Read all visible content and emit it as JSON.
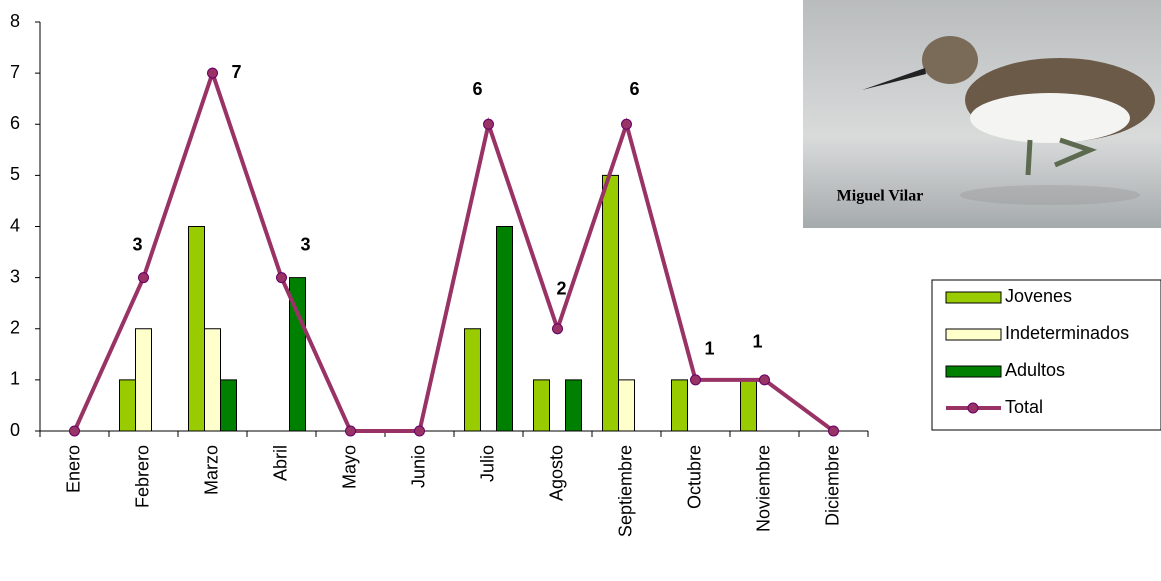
{
  "chart_data": {
    "type": "bar-line",
    "categories": [
      "Enero",
      "Febrero",
      "Marzo",
      "Abril",
      "Mayo",
      "Junio",
      "Julio",
      "Agosto",
      "Septiembre",
      "Octubre",
      "Noviembre",
      "Diciembre"
    ],
    "series": [
      {
        "name": "Jovenes",
        "type": "bar",
        "color": "#99cc00",
        "values": [
          0,
          1,
          4,
          0,
          0,
          0,
          2,
          1,
          5,
          1,
          1,
          0
        ]
      },
      {
        "name": "Indeterminados",
        "type": "bar",
        "color": "#ffffcc",
        "values": [
          0,
          2,
          2,
          0,
          0,
          0,
          0,
          0,
          1,
          0,
          0,
          0
        ]
      },
      {
        "name": "Adultos",
        "type": "bar",
        "color": "#008000",
        "values": [
          0,
          0,
          1,
          3,
          0,
          0,
          4,
          1,
          0,
          0,
          0,
          0
        ]
      },
      {
        "name": "Total",
        "type": "line",
        "color": "#993366",
        "values": [
          0,
          3,
          7,
          3,
          0,
          0,
          6,
          2,
          6,
          1,
          1,
          0
        ]
      }
    ],
    "ylim": [
      0,
      8
    ],
    "yticks": [
      0,
      1,
      2,
      3,
      4,
      5,
      6,
      7,
      8
    ],
    "image_caption": "Miguel Vilar"
  }
}
